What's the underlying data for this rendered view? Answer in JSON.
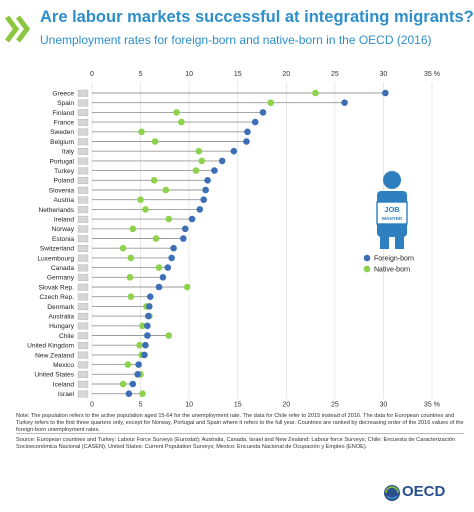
{
  "title": "Are labour markets successful at integrating migrants?",
  "subtitle": "Unemployment rates for foreign-born and native-born in the OECD (2016)",
  "notes": "Note: The population refers to the active population aged 15-64 for the unemployment rate. The data for Chile refer to 2015 instead of 2016. The data for European countries and Turkey refers to the first three quarters only, except for Norway, Portugal and Spain where it refers to the full year. Countries are ranked by decreasing order of the 2016 values of the foreign-born unemployment rates.",
  "source": "Source: European countries and Turkey: Labour Force Surveys (Eurostat); Australia, Canada, Israel and New Zealand: Labour force Surveys; Chile: Encuesta de Caracterización Socioeconómica Nacional (CASEN); United States: Current Population Surveys; Mexico: Encuesta Nacional de Ocupación y Empleo (ENOE).",
  "logo_text": "OECD",
  "icon_sign_text": "JOB WANTED",
  "colors": {
    "foreign": "#3d6fb6",
    "native": "#8cd24a",
    "accent": "#2e8fc9"
  },
  "chart_data": {
    "type": "scatter",
    "xlim": [
      0,
      35
    ],
    "xticks": [
      "0",
      "5",
      "10",
      "15",
      "20",
      "25",
      "30",
      "35 %"
    ],
    "legend_position": "right",
    "categories": [
      "Greece",
      "Spain",
      "Finland",
      "France",
      "Sweden",
      "Belgium",
      "Italy",
      "Portugal",
      "Turkey",
      "Poland",
      "Slovenia",
      "Austria",
      "Netherlands",
      "Ireland",
      "Norway",
      "Estonia",
      "Switzerland",
      "Luxembourg",
      "Canada",
      "Germany",
      "Slovak Rep.",
      "Czech Rep.",
      "Denmark",
      "Australia",
      "Hungary",
      "Chile",
      "United Kingdom",
      "New Zealand",
      "Mexico",
      "United States",
      "Iceland",
      "Israel"
    ],
    "series": [
      {
        "name": "Foreign-born",
        "values": [
          30.2,
          26.0,
          17.6,
          16.8,
          16.0,
          15.9,
          14.6,
          13.4,
          12.6,
          11.9,
          11.7,
          11.5,
          11.1,
          10.3,
          9.6,
          9.4,
          8.4,
          8.2,
          7.8,
          7.3,
          6.9,
          6.0,
          5.9,
          5.8,
          5.7,
          5.7,
          5.5,
          5.4,
          4.8,
          4.7,
          4.2,
          3.8
        ]
      },
      {
        "name": "Native-born",
        "values": [
          23.0,
          18.4,
          8.7,
          9.2,
          5.1,
          6.5,
          11.0,
          11.3,
          10.7,
          6.4,
          7.6,
          5.0,
          5.5,
          7.9,
          4.2,
          6.6,
          3.2,
          4.0,
          6.9,
          3.9,
          9.8,
          4.0,
          5.6,
          5.9,
          5.2,
          7.9,
          4.9,
          5.1,
          3.7,
          5.0,
          3.2,
          5.2
        ]
      }
    ]
  }
}
